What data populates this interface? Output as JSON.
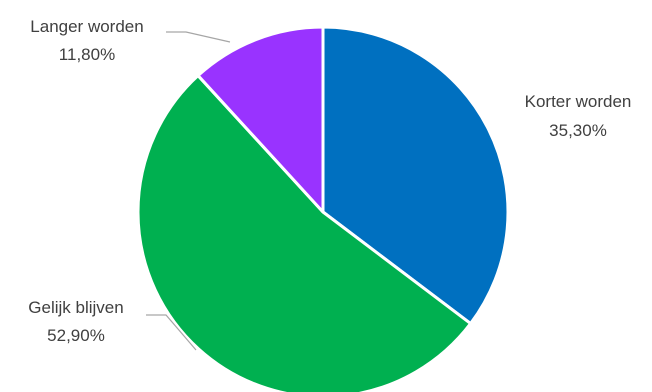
{
  "chart_data": {
    "type": "pie",
    "slices": [
      {
        "name": "Korter worden",
        "value": 35.3,
        "label": "35,30%",
        "color": "#0070C0"
      },
      {
        "name": "Gelijk blijven",
        "value": 52.9,
        "label": "52,90%",
        "color": "#00B050"
      },
      {
        "name": "Langer worden",
        "value": 11.8,
        "label": "11,80%",
        "color": "#9933FF"
      }
    ],
    "start_angle": "12 o'clock",
    "direction": "clockwise",
    "labels": "outside with leader lines",
    "legend": "none"
  }
}
